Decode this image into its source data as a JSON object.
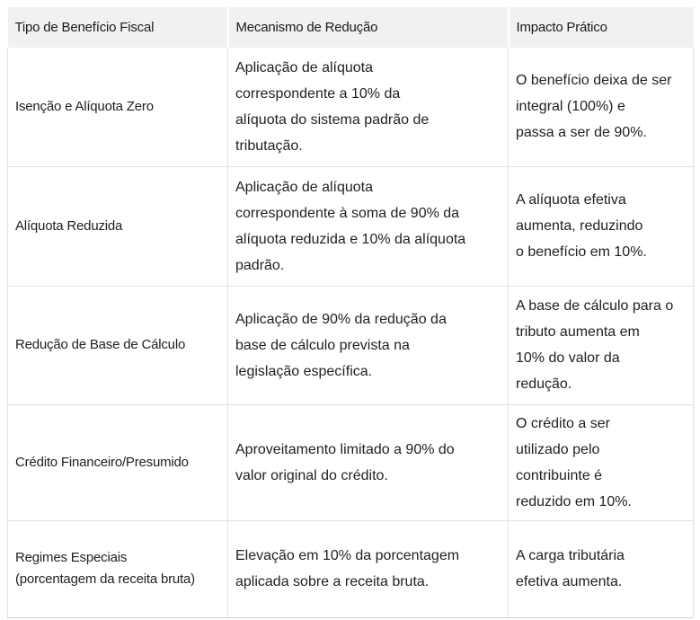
{
  "colors": {
    "header_background": "#f1f1f1",
    "cell_border": "#e2e2e2",
    "bottom_border": "#ccd2d8",
    "text": "#1f1f1f"
  },
  "table": {
    "headers": [
      "Tipo de Benefício Fiscal",
      "Mecanismo de Redução",
      "Impacto Prático"
    ],
    "rows": [
      {
        "tipo": "Isenção e Alíquota Zero",
        "mecanismo": "Aplicação de alíquota\ncorrespondente a 10% da\nalíquota do sistema padrão de\ntributação.",
        "impacto": "O benefício deixa de ser\nintegral (100%) e\npassa a ser de 90%."
      },
      {
        "tipo": "Alíquota Reduzida",
        "mecanismo": "Aplicação de alíquota\ncorrespondente à soma de 90% da\nalíquota reduzida e 10% da alíquota\npadrão.",
        "impacto": "A alíquota efetiva\naumenta, reduzindo\no benefício em 10%."
      },
      {
        "tipo": "Redução de Base de Cálculo",
        "mecanismo": "Aplicação de 90% da redução da\nbase de cálculo prevista na\nlegislação específica.",
        "impacto": "A base de cálculo para o\ntributo aumenta em\n10% do valor da\nredução."
      },
      {
        "tipo": "Crédito Financeiro/Presumido",
        "mecanismo": "Aproveitamento limitado a 90% do\nvalor original do crédito.",
        "impacto": "O crédito a ser\nutilizado pelo\ncontribuinte é\nreduzido em 10%."
      },
      {
        "tipo": "Regimes Especiais\n(porcentagem da receita bruta)",
        "mecanismo": "Elevação em 10% da porcentagem\naplicada sobre a receita bruta.",
        "impacto": "A carga tributária\nefetiva aumenta."
      }
    ]
  }
}
